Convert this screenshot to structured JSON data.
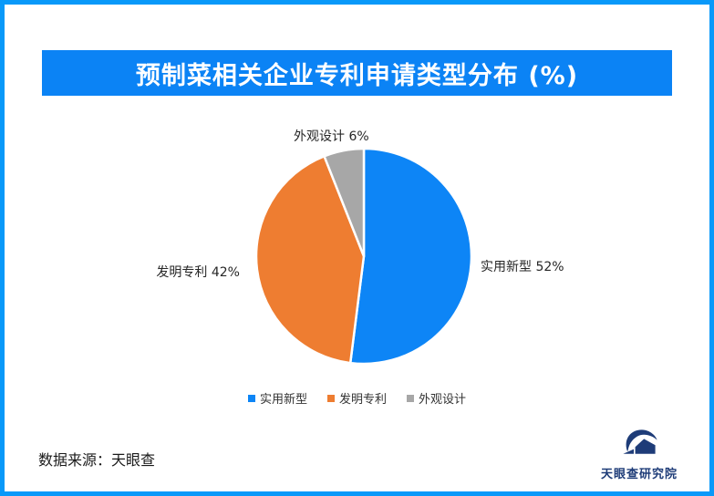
{
  "header": {
    "title": "预制菜相关企业专利申请类型分布 (%)"
  },
  "chart_data": {
    "type": "pie",
    "title": "预制菜相关企业专利申请类型分布 (%)",
    "categories": [
      "实用新型",
      "发明专利",
      "外观设计"
    ],
    "values": [
      52,
      42,
      6
    ],
    "unit": "%",
    "colors": [
      "#0d85f6",
      "#ee7d31",
      "#a7a7a7"
    ],
    "start_angle": "12-oclock",
    "direction": "clockwise",
    "label_format": "{category} {value}%",
    "legend_position": "bottom"
  },
  "footer": {
    "source": "数据来源：天眼查",
    "logo_text": "天眼查研究院"
  },
  "theme": {
    "page_border_color": "#0999f9",
    "title_bar_color": "#0b83f5",
    "title_text_color": "#ffffff",
    "slice_stroke_color": "#ffffff",
    "logo_color": "#1e3c78"
  }
}
